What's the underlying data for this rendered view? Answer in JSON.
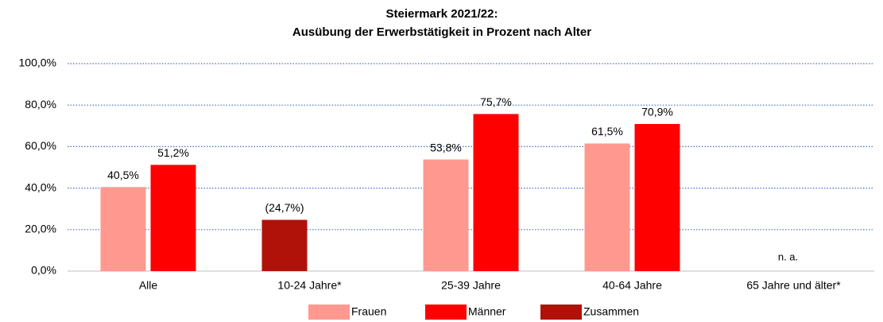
{
  "chart_data": {
    "type": "bar",
    "title": [
      "Steiermark 2021/22:",
      "Ausübung der Erwerbstätigkeit in Prozent nach Alter"
    ],
    "categories": [
      "Alle",
      "10-24 Jahre*",
      "25-39 Jahre",
      "40-64 Jahre",
      "65 Jahre und älter*"
    ],
    "series": [
      {
        "name": "Frauen",
        "color": "#ff9990",
        "values": [
          40.5,
          null,
          53.8,
          61.5,
          null
        ],
        "value_labels": [
          "40,5%",
          null,
          "53,8%",
          "61,5%",
          null
        ]
      },
      {
        "name": "Männer",
        "color": "#ff0000",
        "values": [
          51.2,
          null,
          75.7,
          70.9,
          null
        ],
        "value_labels": [
          "51,2%",
          null,
          "75,7%",
          "70,9%",
          null
        ]
      },
      {
        "name": "Zusammen",
        "color": "#b0120a",
        "values": [
          null,
          24.7,
          null,
          null,
          null
        ],
        "value_labels": [
          null,
          "(24,7%)",
          null,
          null,
          null
        ]
      }
    ],
    "annotation": "n. a.",
    "ylim": [
      0,
      100
    ],
    "yticks": [
      {
        "value": 0,
        "label": "0,0%"
      },
      {
        "value": 20,
        "label": "20,0%"
      },
      {
        "value": 40,
        "label": "40,0%"
      },
      {
        "value": 60,
        "label": "60,0%"
      },
      {
        "value": 80,
        "label": "80,0%"
      },
      {
        "value": 100,
        "label": "100,0%"
      }
    ],
    "grid": true,
    "legend": "bottom"
  }
}
